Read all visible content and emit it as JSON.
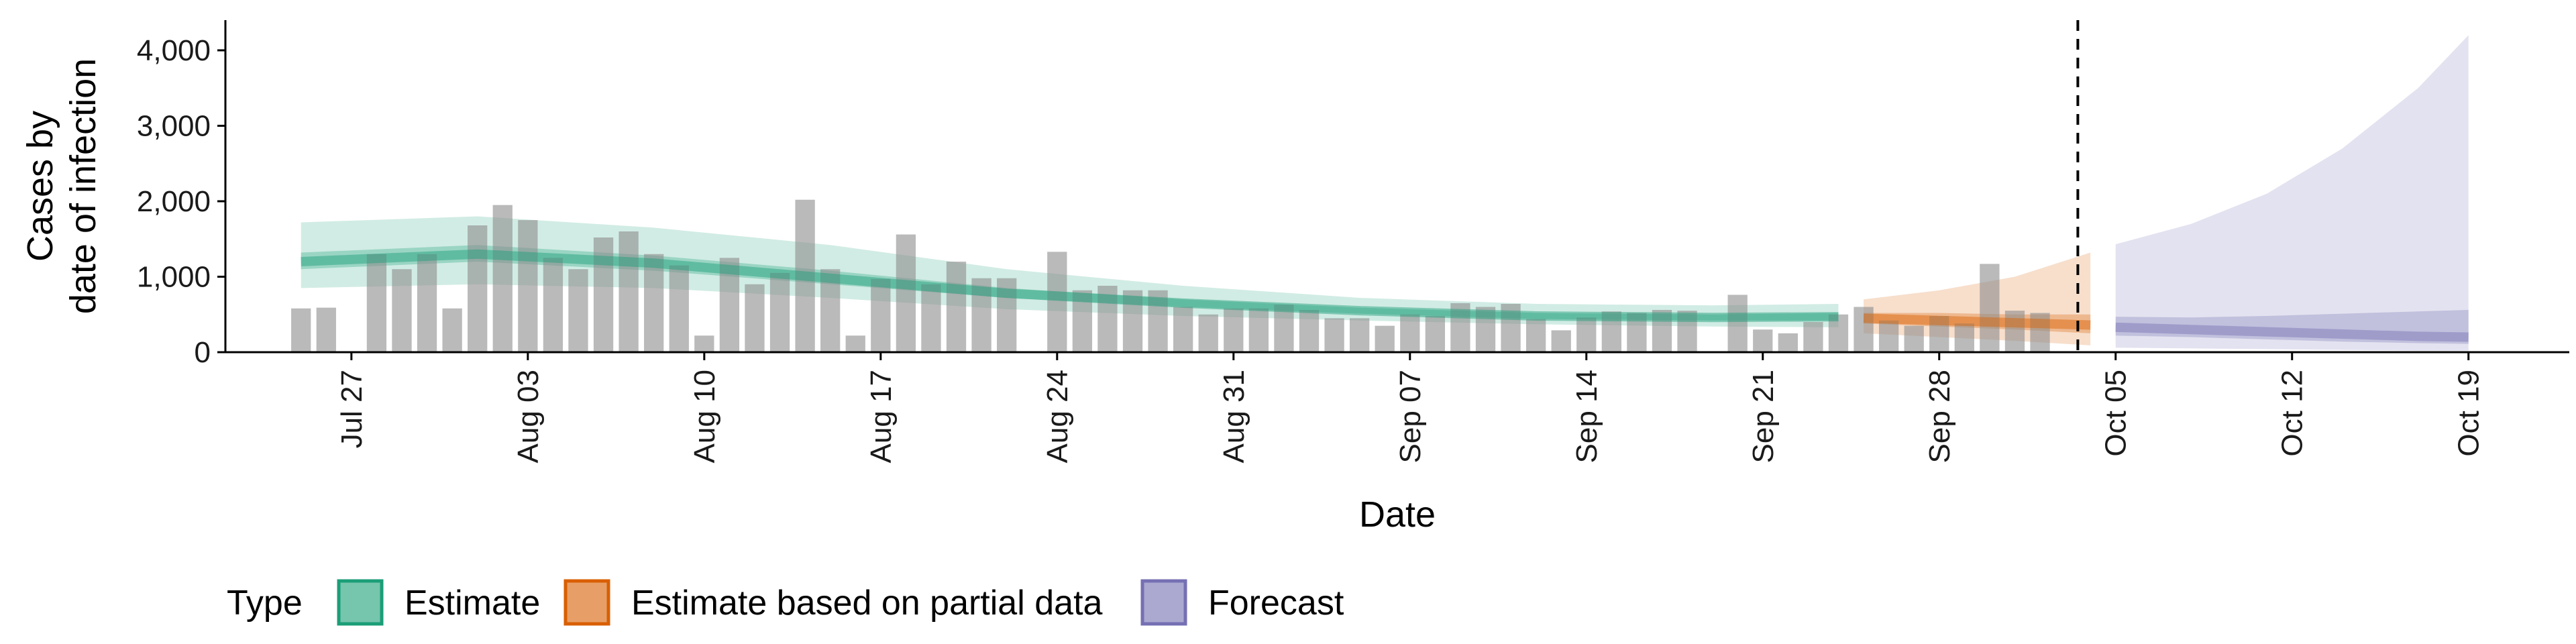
{
  "chart_data": {
    "type": "bar",
    "xlabel": "Date",
    "ylabel_lines": [
      "Cases by",
      "date of infection"
    ],
    "ylim": [
      0,
      4400
    ],
    "y_ticks": [
      0,
      1000,
      2000,
      3000,
      4000
    ],
    "y_tick_labels": [
      "0",
      "1,000",
      "2,000",
      "3,000",
      "4,000"
    ],
    "x_range": [
      "2021-07-22",
      "2021-10-23"
    ],
    "x_ticks": [
      "2021-07-27",
      "2021-08-03",
      "2021-08-10",
      "2021-08-17",
      "2021-08-24",
      "2021-08-31",
      "2021-09-07",
      "2021-09-14",
      "2021-09-21",
      "2021-09-28",
      "2021-10-05",
      "2021-10-12",
      "2021-10-19"
    ],
    "x_tick_labels": [
      "Jul 27",
      "Aug 03",
      "Aug 10",
      "Aug 17",
      "Aug 24",
      "Aug 31",
      "Sep 07",
      "Sep 14",
      "Sep 21",
      "Sep 28",
      "Oct 05",
      "Oct 12",
      "Oct 19"
    ],
    "forecast_start": "2021-10-04",
    "reported_cases": {
      "start_date": "2021-07-25",
      "values": [
        580,
        590,
        0,
        1300,
        1100,
        1300,
        580,
        1680,
        1950,
        1750,
        1250,
        1100,
        1520,
        1600,
        1300,
        1150,
        220,
        1250,
        900,
        1050,
        2020,
        1100,
        220,
        970,
        1560,
        900,
        1200,
        980,
        980,
        0,
        1330,
        820,
        880,
        820,
        820,
        600,
        500,
        580,
        580,
        630,
        560,
        450,
        450,
        350,
        500,
        480,
        650,
        600,
        640,
        440,
        290,
        460,
        540,
        520,
        560,
        550,
        0,
        760,
        300,
        250,
        400,
        500,
        600,
        420,
        350,
        480,
        380,
        1170,
        550,
        520
      ]
    },
    "series": [
      {
        "name": "Estimate",
        "color": "#1b9e77",
        "points": [
          {
            "x": "2021-07-25",
            "median": 1200,
            "inner": [
              1100,
              1320
            ],
            "outer": [
              850,
              1720
            ]
          },
          {
            "x": "2021-08-01",
            "median": 1300,
            "inner": [
              1200,
              1420
            ],
            "outer": [
              900,
              1800
            ]
          },
          {
            "x": "2021-08-08",
            "median": 1180,
            "inner": [
              1080,
              1280
            ],
            "outer": [
              850,
              1650
            ]
          },
          {
            "x": "2021-08-15",
            "median": 980,
            "inner": [
              900,
              1080
            ],
            "outer": [
              720,
              1420
            ]
          },
          {
            "x": "2021-08-22",
            "median": 780,
            "inner": [
              720,
              850
            ],
            "outer": [
              570,
              1100
            ]
          },
          {
            "x": "2021-08-29",
            "median": 650,
            "inner": [
              600,
              700
            ],
            "outer": [
              480,
              880
            ]
          },
          {
            "x": "2021-09-05",
            "median": 550,
            "inner": [
              510,
              590
            ],
            "outer": [
              420,
              720
            ]
          },
          {
            "x": "2021-09-12",
            "median": 480,
            "inner": [
              440,
              520
            ],
            "outer": [
              370,
              640
            ]
          },
          {
            "x": "2021-09-19",
            "median": 460,
            "inner": [
              420,
              500
            ],
            "outer": [
              340,
              620
            ]
          },
          {
            "x": "2021-09-24",
            "median": 470,
            "inner": [
              420,
              520
            ],
            "outer": [
              330,
              640
            ]
          }
        ]
      },
      {
        "name": "Estimate based on partial data",
        "color": "#d95f02",
        "points": [
          {
            "x": "2021-09-25",
            "median": 450,
            "inner": [
              380,
              520
            ],
            "outer": [
              250,
              700
            ]
          },
          {
            "x": "2021-09-28",
            "median": 420,
            "inner": [
              340,
              520
            ],
            "outer": [
              200,
              820
            ]
          },
          {
            "x": "2021-10-01",
            "median": 390,
            "inner": [
              300,
              500
            ],
            "outer": [
              150,
              1000
            ]
          },
          {
            "x": "2021-10-04",
            "median": 360,
            "inner": [
              250,
              500
            ],
            "outer": [
              90,
              1320
            ]
          }
        ]
      },
      {
        "name": "Forecast",
        "color": "#7570b3",
        "points": [
          {
            "x": "2021-10-05",
            "median": 330,
            "inner": [
              220,
              470
            ],
            "outer": [
              60,
              1430
            ]
          },
          {
            "x": "2021-10-08",
            "median": 300,
            "inner": [
              200,
              460
            ],
            "outer": [
              50,
              1700
            ]
          },
          {
            "x": "2021-10-11",
            "median": 270,
            "inner": [
              170,
              480
            ],
            "outer": [
              40,
              2100
            ]
          },
          {
            "x": "2021-10-14",
            "median": 240,
            "inner": [
              140,
              510
            ],
            "outer": [
              30,
              2700
            ]
          },
          {
            "x": "2021-10-17",
            "median": 210,
            "inner": [
              120,
              540
            ],
            "outer": [
              20,
              3500
            ]
          },
          {
            "x": "2021-10-19",
            "median": 200,
            "inner": [
              110,
              560
            ],
            "outer": [
              20,
              4200
            ]
          }
        ]
      }
    ],
    "legend": {
      "title": "Type",
      "position": "bottom",
      "entries": [
        "Estimate",
        "Estimate based on partial data",
        "Forecast"
      ]
    },
    "grid": false
  }
}
